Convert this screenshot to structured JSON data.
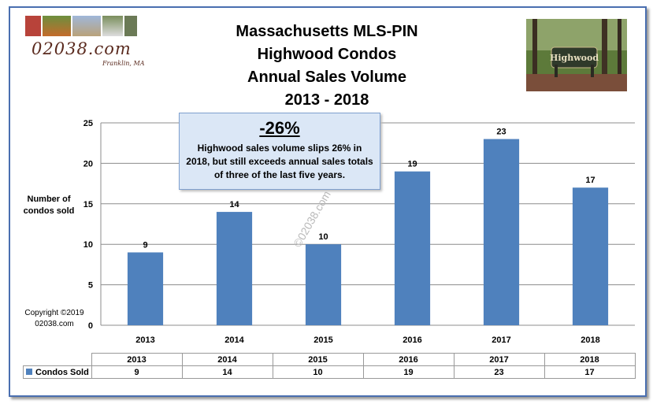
{
  "header": {
    "title_lines": [
      "Massachusetts MLS-PIN",
      "Highwood Condos",
      "Annual Sales Volume",
      "2013 - 2018"
    ],
    "logo_text": "02038.com",
    "logo_subtext": "Franklin, MA",
    "photo_sign_text": "Highwood"
  },
  "callout": {
    "percent": "-26%",
    "text": "Highwood sales volume slips 26% in 2018, but still exceeds annual sales totals of three of the last five years."
  },
  "watermark": "©02038.com",
  "copyright": {
    "line1": "Copyright ©2019",
    "line2": "02038.com"
  },
  "ylabel_lines": [
    "Number of",
    "condos sold"
  ],
  "colors": {
    "bar": "#4f81bd",
    "frame": "#4a6fb0",
    "callout_bg": "#dbe7f6"
  },
  "chart_data": {
    "type": "bar",
    "title": "Massachusetts MLS-PIN Highwood Condos Annual Sales Volume 2013 - 2018",
    "categories": [
      "2013",
      "2014",
      "2015",
      "2016",
      "2017",
      "2018"
    ],
    "series": [
      {
        "name": "Condos Sold",
        "values": [
          9,
          14,
          10,
          19,
          23,
          17
        ]
      }
    ],
    "ylabel": "Number of condos sold",
    "xlabel": "",
    "ylim": [
      0,
      25
    ],
    "yticks": [
      0,
      5,
      10,
      15,
      20,
      25
    ],
    "grid": true,
    "data_labels": true,
    "data_table": true
  }
}
